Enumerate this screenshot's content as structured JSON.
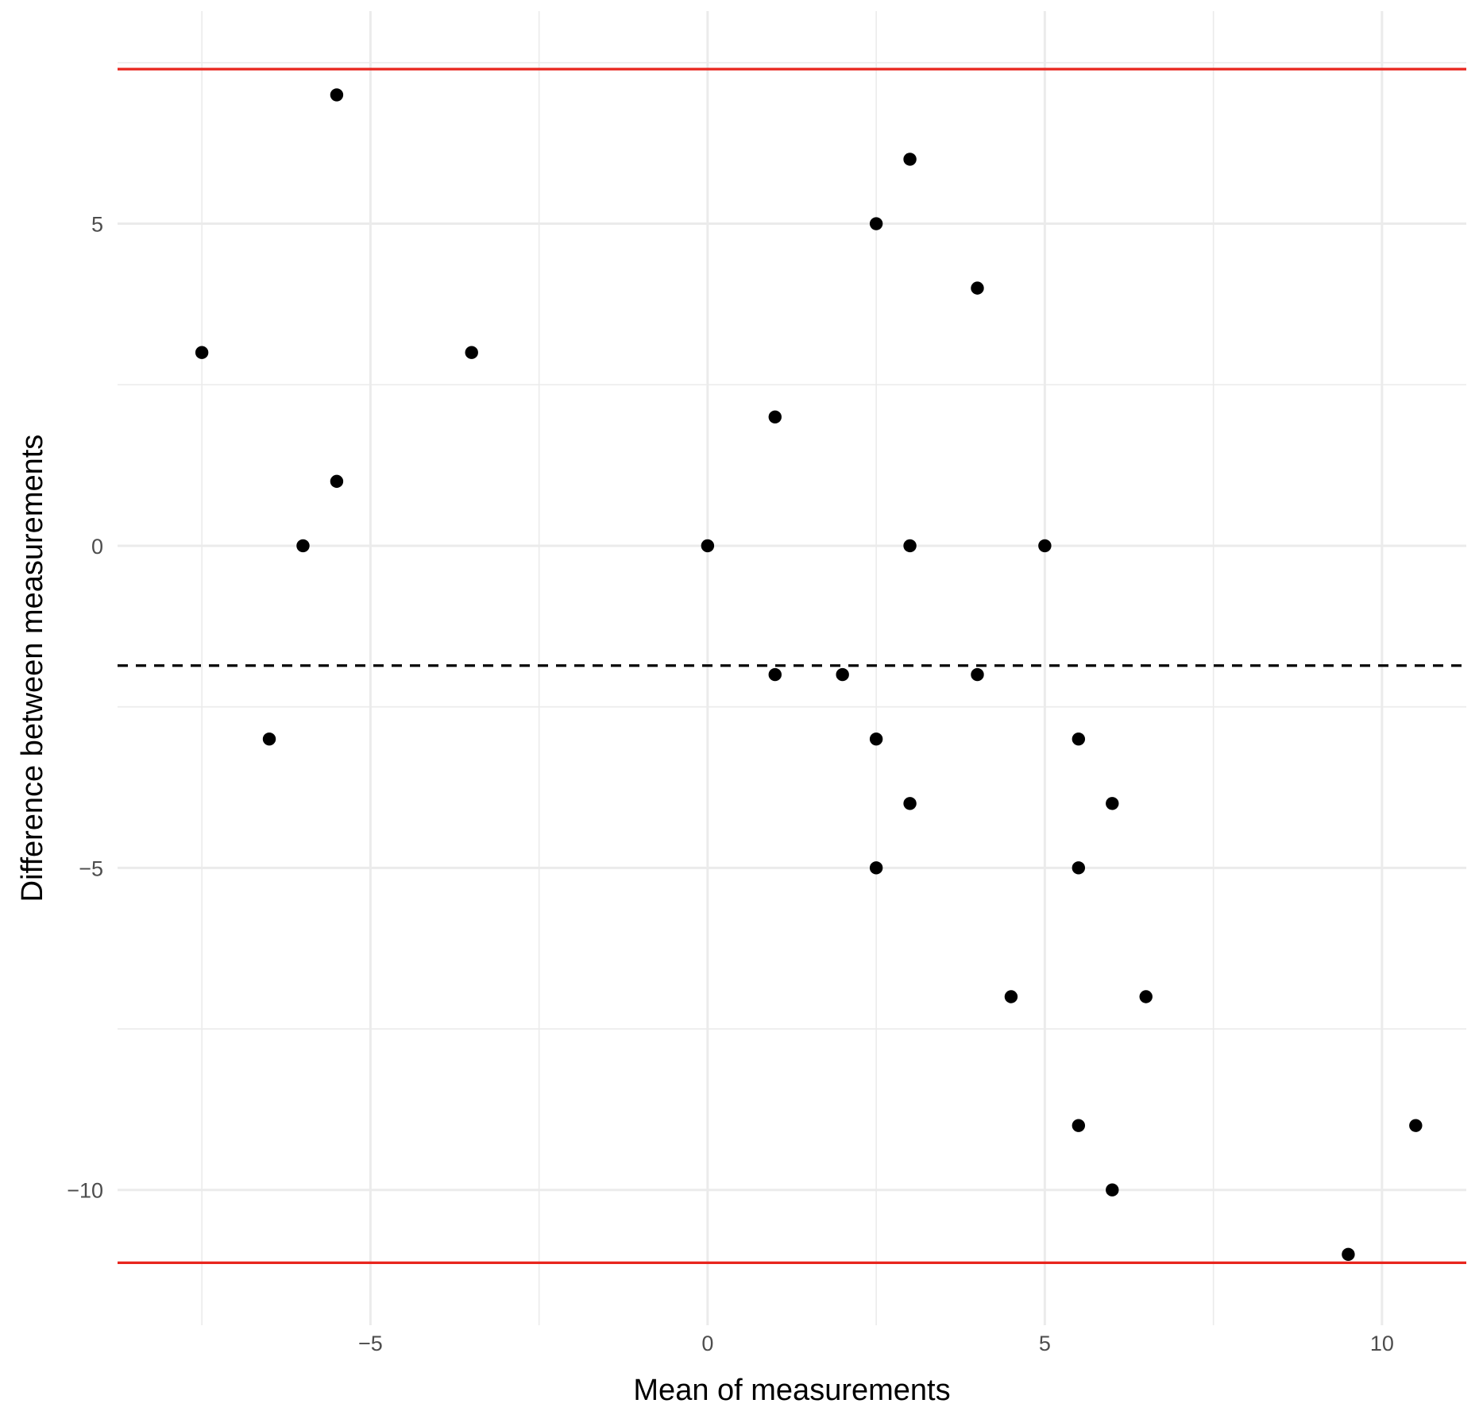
{
  "chart_data": {
    "type": "scatter",
    "title": "",
    "xlabel": "Mean of measurements",
    "ylabel": "Difference between measurements",
    "xlim": [
      -8.75,
      11.25
    ],
    "ylim": [
      -12.1,
      8.3
    ],
    "x_ticks": [
      -5,
      0,
      5,
      10
    ],
    "x_tick_labels": [
      "−5",
      "0",
      "5",
      "10"
    ],
    "y_ticks": [
      -10,
      -5,
      0,
      5
    ],
    "y_tick_labels": [
      "−10",
      "−5",
      "0",
      "5"
    ],
    "grid": true,
    "point_color": "#000000",
    "points": [
      {
        "x": -7.5,
        "y": 3
      },
      {
        "x": -6.5,
        "y": -3
      },
      {
        "x": -6,
        "y": 0
      },
      {
        "x": -5.5,
        "y": 7
      },
      {
        "x": -5.5,
        "y": 1
      },
      {
        "x": -3.5,
        "y": 3
      },
      {
        "x": 0,
        "y": 0
      },
      {
        "x": 1,
        "y": 2
      },
      {
        "x": 1,
        "y": -2
      },
      {
        "x": 2,
        "y": -2
      },
      {
        "x": 2.5,
        "y": 5
      },
      {
        "x": 2.5,
        "y": -3
      },
      {
        "x": 2.5,
        "y": -5
      },
      {
        "x": 3,
        "y": 6
      },
      {
        "x": 3,
        "y": 0
      },
      {
        "x": 3,
        "y": -4
      },
      {
        "x": 4,
        "y": 4
      },
      {
        "x": 4,
        "y": -2
      },
      {
        "x": 4.5,
        "y": -7
      },
      {
        "x": 5,
        "y": 0
      },
      {
        "x": 5.5,
        "y": -3
      },
      {
        "x": 5.5,
        "y": -5
      },
      {
        "x": 5.5,
        "y": -9
      },
      {
        "x": 6,
        "y": -4
      },
      {
        "x": 6,
        "y": -10
      },
      {
        "x": 6.5,
        "y": -7
      },
      {
        "x": 9.5,
        "y": -11
      },
      {
        "x": 10.5,
        "y": -9
      }
    ],
    "reference_lines": [
      {
        "kind": "mean",
        "y": -1.86,
        "color": "#000000",
        "style": "dashed"
      },
      {
        "kind": "upper-limit",
        "y": 7.4,
        "color": "#e8251d",
        "style": "solid"
      },
      {
        "kind": "lower-limit",
        "y": -11.13,
        "color": "#e8251d",
        "style": "solid"
      }
    ]
  }
}
